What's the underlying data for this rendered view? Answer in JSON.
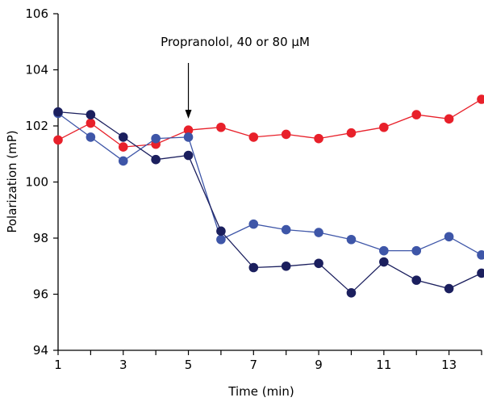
{
  "chart_data": {
    "type": "line",
    "title": "",
    "xlabel": "Time (min)",
    "ylabel": "Polarization (mP)",
    "xlim": [
      1,
      14
    ],
    "ylim": [
      94,
      106
    ],
    "xticks": [
      1,
      3,
      5,
      7,
      9,
      11,
      13
    ],
    "yticks": [
      94,
      96,
      98,
      100,
      102,
      104,
      106
    ],
    "grid": false,
    "legend": "none",
    "annotation": {
      "text": "Propranolol, 40 or 80 μM",
      "x": 5
    },
    "series": [
      {
        "color": "#e8202a",
        "x": [
          1,
          2,
          3,
          4,
          5,
          6,
          7,
          8,
          9,
          10,
          11,
          12,
          13,
          14
        ],
        "values": [
          101.5,
          102.1,
          101.25,
          101.35,
          101.85,
          101.95,
          101.6,
          101.7,
          101.55,
          101.75,
          101.95,
          102.4,
          102.25,
          102.95
        ]
      },
      {
        "color": "#3e56a8",
        "x": [
          1,
          2,
          3,
          4,
          5,
          6,
          7,
          8,
          9,
          10,
          11,
          12,
          13,
          14
        ],
        "values": [
          102.45,
          101.6,
          100.75,
          101.55,
          101.6,
          97.95,
          98.5,
          98.3,
          98.2,
          97.95,
          97.55,
          97.55,
          98.05,
          97.4
        ]
      },
      {
        "color": "#1b1f5e",
        "x": [
          1,
          2,
          3,
          4,
          5,
          6,
          7,
          8,
          9,
          10,
          11,
          12,
          13,
          14
        ],
        "values": [
          102.5,
          102.4,
          101.6,
          100.8,
          100.95,
          98.25,
          96.95,
          97.0,
          97.1,
          96.05,
          97.15,
          96.5,
          96.2,
          96.75
        ]
      }
    ]
  }
}
